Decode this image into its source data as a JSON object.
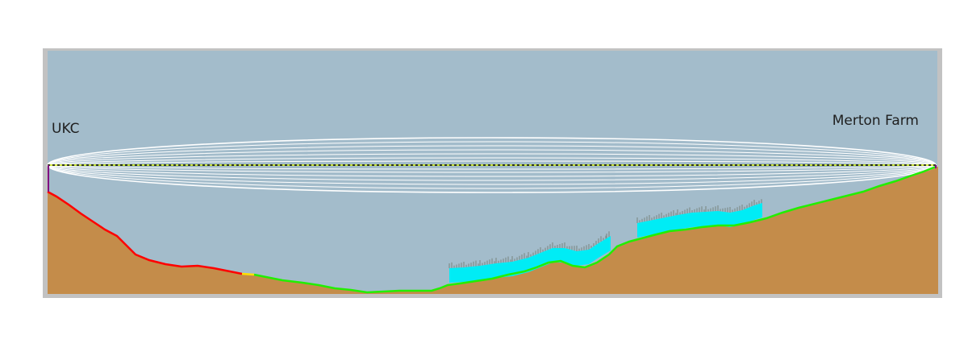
{
  "profile": {
    "start_label": "UKC",
    "end_label": "Merton Farm"
  },
  "colors": {
    "sky": "#a3bccb",
    "ground": "#c48c4a",
    "frame": "#c2c2c2",
    "fresnel_zone": "#ffffff",
    "line_of_sight": "#000000",
    "los_highlight": "#cbe800",
    "ground_obstructed": "#ff0000",
    "ground_marginal": "#ffe000",
    "ground_clear": "#22ee00",
    "trees": "#00ecf5",
    "tree_tops": "#7f8d8c",
    "antenna_mast": "#800080"
  }
}
